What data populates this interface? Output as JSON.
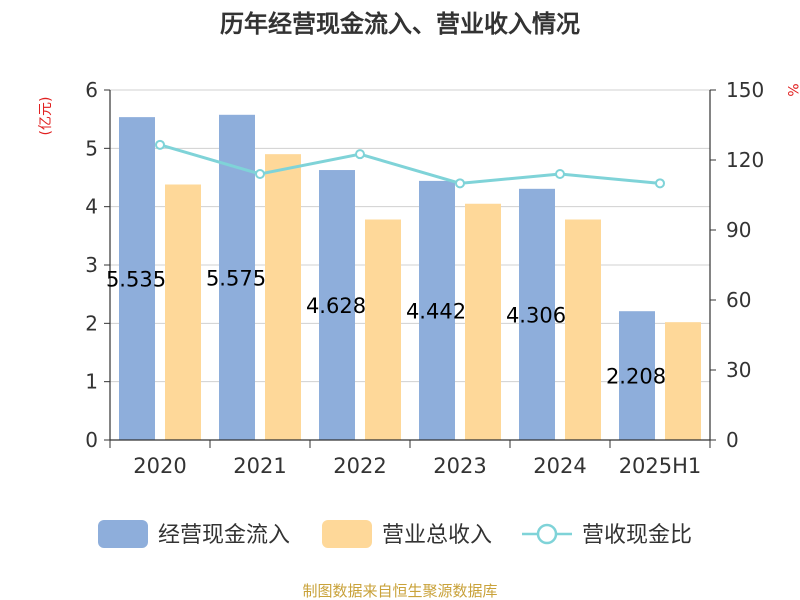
{
  "chart_data": {
    "type": "bar",
    "title": "历年经营现金流入、营业收入情况",
    "categories": [
      "2020",
      "2021",
      "2022",
      "2023",
      "2024",
      "2025H1"
    ],
    "y_left": {
      "label": "(亿元)",
      "ylim": [
        0,
        6
      ],
      "ticks": [
        0,
        1,
        2,
        3,
        4,
        5,
        6
      ]
    },
    "y_right": {
      "label": "%",
      "ylim": [
        0,
        150
      ],
      "ticks": [
        0,
        30,
        60,
        90,
        120,
        150
      ]
    },
    "grid": true,
    "legend_position": "bottom",
    "series": [
      {
        "name": "经营现金流入",
        "type": "bar",
        "axis": "left",
        "color": "#8eaedb",
        "values": [
          5.535,
          5.575,
          4.628,
          4.442,
          4.306,
          2.208
        ],
        "labels": [
          "5.535",
          "5.575",
          "4.628",
          "4.442",
          "4.306",
          "2.208"
        ]
      },
      {
        "name": "营业总收入",
        "type": "bar",
        "axis": "left",
        "color": "#fed899",
        "values": [
          4.38,
          4.9,
          3.78,
          4.05,
          3.78,
          2.02
        ]
      },
      {
        "name": "营收现金比",
        "type": "line",
        "axis": "right",
        "color": "#7fd3d8",
        "values": [
          126.5,
          114,
          122.5,
          110,
          114,
          110
        ]
      }
    ]
  },
  "source": "制图数据来自恒生聚源数据库"
}
